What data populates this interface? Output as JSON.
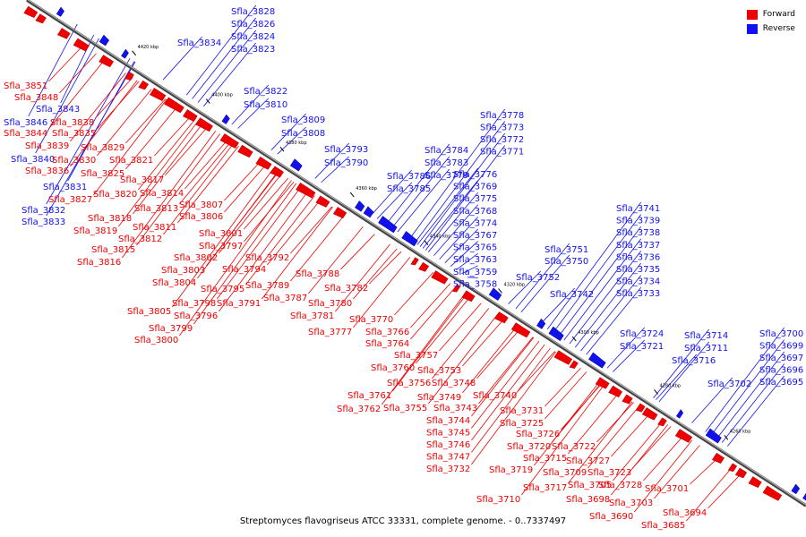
{
  "caption": "Streptomyces flavogriseus ATCC 33331, complete genome. - 0..7337497",
  "legend": {
    "forward": {
      "label": "Forward",
      "color": "#ee0000"
    },
    "reverse": {
      "label": "Reverse",
      "color": "#1111ee"
    }
  },
  "ruler_ticks": [
    "4420 kbp",
    "4400 kbp",
    "4380 kbp",
    "4360 kbp",
    "4340 kbp",
    "4320 kbp",
    "4300 kbp",
    "4280 kbp",
    "4260 kbp"
  ],
  "reverse_labels": [
    "Sfla_3828",
    "Sfla_3826",
    "Sfla_3834",
    "Sfla_3824",
    "Sfla_3823",
    "Sfla_3822",
    "Sfla_3810",
    "Sfla_3809",
    "Sfla_3808",
    "Sfla_3793",
    "Sfla_3790",
    "Sfla_3786",
    "Sfla_3785",
    "Sfla_3784",
    "Sfla_3783",
    "Sfla_3779",
    "Sfla_3778",
    "Sfla_3773",
    "Sfla_3772",
    "Sfla_3771",
    "Sfla_3776",
    "Sfla_3769",
    "Sfla_3775",
    "Sfla_3768",
    "Sfla_3774",
    "Sfla_3767",
    "Sfla_3765",
    "Sfla_3763",
    "Sfla_3759",
    "Sfla_3758",
    "Sfla_3751",
    "Sfla_3750",
    "Sfla_3752",
    "Sfla_3742",
    "Sfla_3741",
    "Sfla_3739",
    "Sfla_3738",
    "Sfla_3737",
    "Sfla_3736",
    "Sfla_3735",
    "Sfla_3734",
    "Sfla_3733",
    "Sfla_3724",
    "Sfla_3721",
    "Sfla_3714",
    "Sfla_3711",
    "Sfla_3716",
    "Sfla_3702",
    "Sfla_3700",
    "Sfla_3699",
    "Sfla_3697",
    "Sfla_3696",
    "Sfla_3695",
    "Sfla_3846",
    "Sfla_3843",
    "Sfla_3840",
    "Sfla_3831",
    "Sfla_3832",
    "Sfla_3833"
  ],
  "forward_labels": [
    "Sfla_3851",
    "Sfla_3848",
    "Sfla_3838",
    "Sfla_3844",
    "Sfla_3835",
    "Sfla_3839",
    "Sfla_3829",
    "Sfla_3830",
    "Sfla_3836",
    "Sfla_3825",
    "Sfla_3821",
    "Sfla_3817",
    "Sfla_3827",
    "Sfla_3820",
    "Sfla_3814",
    "Sfla_3818",
    "Sfla_3813",
    "Sfla_3819",
    "Sfla_3811",
    "Sfla_3812",
    "Sfla_3815",
    "Sfla_3816",
    "Sfla_3807",
    "Sfla_3806",
    "Sfla_3801",
    "Sfla_3797",
    "Sfla_3802",
    "Sfla_3792",
    "Sfla_3803",
    "Sfla_3794",
    "Sfla_3804",
    "Sfla_3788",
    "Sfla_3795",
    "Sfla_3789",
    "Sfla_3782",
    "Sfla_3798",
    "Sfla_3791",
    "Sfla_3787",
    "Sfla_3780",
    "Sfla_3805",
    "Sfla_3796",
    "Sfla_3781",
    "Sfla_3799",
    "Sfla_3800",
    "Sfla_3770",
    "Sfla_3777",
    "Sfla_3766",
    "Sfla_3764",
    "Sfla_3757",
    "Sfla_3760",
    "Sfla_3753",
    "Sfla_3756",
    "Sfla_3748",
    "Sfla_3761",
    "Sfla_3749",
    "Sfla_3740",
    "Sfla_3762",
    "Sfla_3755",
    "Sfla_3743",
    "Sfla_3744",
    "Sfla_3745",
    "Sfla_3746",
    "Sfla_3747",
    "Sfla_3732",
    "Sfla_3731",
    "Sfla_3725",
    "Sfla_3726",
    "Sfla_3720",
    "Sfla_3722",
    "Sfla_3715",
    "Sfla_3727",
    "Sfla_3719",
    "Sfla_3709",
    "Sfla_3723",
    "Sfla_3717",
    "Sfla_3705",
    "Sfla_3728",
    "Sfla_3710",
    "Sfla_3698",
    "Sfla_3701",
    "Sfla_3703",
    "Sfla_3690",
    "Sfla_3694",
    "Sfla_3685"
  ]
}
